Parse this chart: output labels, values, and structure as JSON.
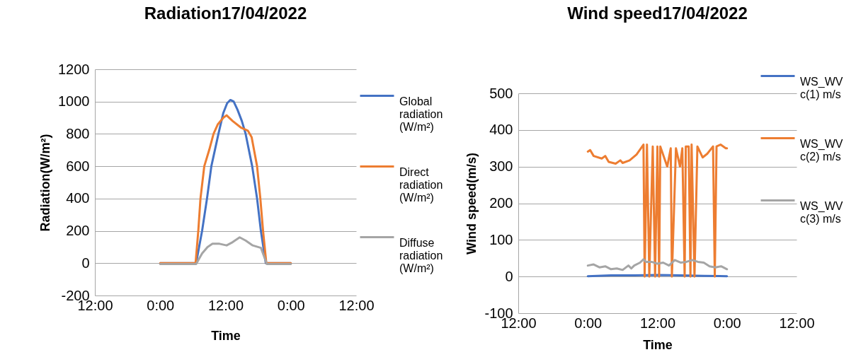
{
  "chart_data": [
    {
      "type": "line",
      "title": "Radiation17/04/2022",
      "xlabel": "Time",
      "ylabel": "Radiation(W/m²)",
      "xlim": [
        "2022-04-16T12:00",
        "2022-04-18T12:00"
      ],
      "xticks": [
        {
          "value": "2022-04-16T12:00",
          "label": "12:00"
        },
        {
          "value": "2022-04-17T00:00",
          "label": "0:00"
        },
        {
          "value": "2022-04-17T12:00",
          "label": "12:00"
        },
        {
          "value": "2022-04-18T00:00",
          "label": "0:00"
        },
        {
          "value": "2022-04-18T12:00",
          "label": "12:00"
        }
      ],
      "ylim": [
        -200,
        1200
      ],
      "yticks": [
        -200,
        0,
        200,
        400,
        600,
        800,
        1000,
        1200
      ],
      "grid": "y",
      "legend": "right",
      "marker": "none",
      "line_style": "solid",
      "series": [
        {
          "name": "Global radiation (W/m²)",
          "color": "#4472c4",
          "x": [
            "2022-04-17T00:00",
            "2022-04-17T06:36",
            "2022-04-17T07:42",
            "2022-04-17T08:36",
            "2022-04-17T09:24",
            "2022-04-17T10:42",
            "2022-04-17T11:36",
            "2022-04-17T12:18",
            "2022-04-17T12:54",
            "2022-04-17T13:30",
            "2022-04-17T14:12",
            "2022-04-17T15:00",
            "2022-04-17T15:42",
            "2022-04-17T16:54",
            "2022-04-17T17:48",
            "2022-04-17T18:30",
            "2022-04-17T19:24",
            "2022-04-18T00:00"
          ],
          "values": [
            0,
            0,
            200,
            400,
            600,
            800,
            930,
            990,
            1010,
            1000,
            950,
            880,
            800,
            600,
            400,
            200,
            0,
            0
          ]
        },
        {
          "name": "Direct radiation (W/m²)",
          "color": "#ed7d31",
          "x": [
            "2022-04-17T00:00",
            "2022-04-17T06:30",
            "2022-04-17T07:00",
            "2022-04-17T07:24",
            "2022-04-17T08:06",
            "2022-04-17T09:00",
            "2022-04-17T09:48",
            "2022-04-17T10:36",
            "2022-04-17T11:36",
            "2022-04-17T12:12",
            "2022-04-17T13:18",
            "2022-04-17T14:48",
            "2022-04-17T16:06",
            "2022-04-17T16:48",
            "2022-04-17T17:48",
            "2022-04-17T18:24",
            "2022-04-17T18:54",
            "2022-04-17T19:30",
            "2022-04-18T00:00"
          ],
          "values": [
            0,
            0,
            200,
            400,
            600,
            700,
            800,
            860,
            900,
            915,
            880,
            840,
            820,
            780,
            600,
            400,
            200,
            0,
            0
          ]
        },
        {
          "name": "Diffuse radiation (W/m²)",
          "color": "#a5a5a5",
          "x": [
            "2022-04-17T00:00",
            "2022-04-17T06:36",
            "2022-04-17T07:42",
            "2022-04-17T08:42",
            "2022-04-17T09:36",
            "2022-04-17T10:54",
            "2022-04-17T12:12",
            "2022-04-17T13:18",
            "2022-04-17T14:36",
            "2022-04-17T15:42",
            "2022-04-17T17:00",
            "2022-04-17T18:30",
            "2022-04-17T19:36",
            "2022-04-18T00:00"
          ],
          "values": [
            -5,
            -5,
            60,
            100,
            120,
            120,
            110,
            130,
            160,
            140,
            110,
            95,
            -5,
            -5
          ]
        }
      ]
    },
    {
      "type": "line",
      "title": "Wind speed17/04/2022",
      "xlabel": "Time",
      "ylabel": "Wind speed(m/s)",
      "xlim": [
        "2022-04-16T12:00",
        "2022-04-18T12:00"
      ],
      "xticks": [
        {
          "value": "2022-04-16T12:00",
          "label": "12:00"
        },
        {
          "value": "2022-04-17T00:00",
          "label": "0:00"
        },
        {
          "value": "2022-04-17T12:00",
          "label": "12:00"
        },
        {
          "value": "2022-04-18T00:00",
          "label": "0:00"
        },
        {
          "value": "2022-04-18T12:00",
          "label": "12:00"
        }
      ],
      "ylim": [
        -100,
        500
      ],
      "yticks": [
        -100,
        0,
        100,
        200,
        300,
        400,
        500
      ],
      "grid": "y",
      "legend": "top right",
      "marker": "none",
      "line_style": "solid",
      "series": [
        {
          "name": "WS_WV c(1) m/s",
          "color": "#4472c4",
          "x": [
            "2022-04-17T00:00",
            "2022-04-17T04:00",
            "2022-04-17T08:00",
            "2022-04-17T12:00",
            "2022-04-17T16:00",
            "2022-04-17T20:00",
            "2022-04-18T00:00"
          ],
          "values": [
            1,
            3,
            3,
            4,
            3,
            2,
            1
          ]
        },
        {
          "name": "WS_WV c(2) m/s",
          "color": "#ed7d31",
          "x": [
            "2022-04-17T00:00",
            "2022-04-17T00:24",
            "2022-04-17T01:00",
            "2022-04-17T02:24",
            "2022-04-17T03:00",
            "2022-04-17T03:36",
            "2022-04-17T04:48",
            "2022-04-17T05:36",
            "2022-04-17T06:00",
            "2022-04-17T07:12",
            "2022-04-17T08:24",
            "2022-04-17T09:36",
            "2022-04-17T09:48",
            "2022-04-17T10:12",
            "2022-04-17T10:36",
            "2022-04-17T11:12",
            "2022-04-17T11:36",
            "2022-04-17T12:00",
            "2022-04-17T12:18",
            "2022-04-17T12:30",
            "2022-04-17T13:42",
            "2022-04-17T14:18",
            "2022-04-17T14:30",
            "2022-04-17T15:12",
            "2022-04-17T15:54",
            "2022-04-17T16:18",
            "2022-04-17T16:42",
            "2022-04-17T16:54",
            "2022-04-17T17:24",
            "2022-04-17T17:42",
            "2022-04-17T17:54",
            "2022-04-17T18:24",
            "2022-04-17T18:54",
            "2022-04-17T19:48",
            "2022-04-17T20:36",
            "2022-04-17T21:36",
            "2022-04-17T21:54",
            "2022-04-17T22:12",
            "2022-04-17T22:54",
            "2022-04-17T23:48",
            "2022-04-18T00:00"
          ],
          "values": [
            341,
            345,
            329,
            322,
            329,
            313,
            308,
            317,
            310,
            317,
            333,
            360,
            0,
            360,
            0,
            355,
            0,
            355,
            0,
            355,
            300,
            350,
            0,
            350,
            300,
            350,
            0,
            355,
            355,
            0,
            360,
            0,
            355,
            325,
            335,
            355,
            0,
            355,
            360,
            350,
            350
          ]
        },
        {
          "name": "WS_WV c(3) m/s",
          "color": "#a5a5a5",
          "x": [
            "2022-04-17T00:00",
            "2022-04-17T01:00",
            "2022-04-17T02:00",
            "2022-04-17T03:00",
            "2022-04-17T04:00",
            "2022-04-17T05:00",
            "2022-04-17T06:00",
            "2022-04-17T07:00",
            "2022-04-17T07:30",
            "2022-04-17T08:00",
            "2022-04-17T09:00",
            "2022-04-17T09:36",
            "2022-04-17T10:00",
            "2022-04-17T11:00",
            "2022-04-17T12:00",
            "2022-04-17T13:00",
            "2022-04-17T14:00",
            "2022-04-17T15:00",
            "2022-04-17T16:00",
            "2022-04-17T17:00",
            "2022-04-17T18:00",
            "2022-04-17T19:00",
            "2022-04-17T20:00",
            "2022-04-17T21:00",
            "2022-04-17T22:00",
            "2022-04-17T23:00",
            "2022-04-18T00:00"
          ],
          "values": [
            30,
            33,
            25,
            28,
            20,
            22,
            18,
            30,
            22,
            30,
            38,
            47,
            40,
            40,
            35,
            38,
            30,
            45,
            38,
            40,
            45,
            40,
            38,
            28,
            25,
            28,
            20
          ]
        }
      ]
    }
  ]
}
